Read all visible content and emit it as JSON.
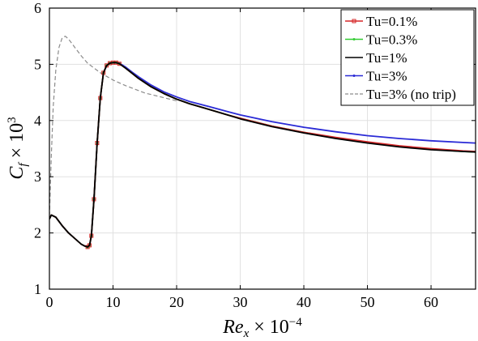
{
  "chart_data": {
    "type": "line",
    "xlabel": "Re_x × 10^-4",
    "ylabel": "C_f × 10^3",
    "xlim": [
      0,
      67
    ],
    "ylim": [
      1,
      6
    ],
    "xticks": [
      0,
      10,
      20,
      30,
      40,
      50,
      60
    ],
    "yticks": [
      1,
      2,
      3,
      4,
      5,
      6
    ],
    "grid": true,
    "legend_position": "top-right",
    "series": [
      {
        "name": "Tu=0.1%",
        "color": "#d62728",
        "style": "solid-square-markers",
        "x": [
          0,
          0.3,
          1,
          2,
          3,
          4,
          5,
          5.5,
          6,
          6.3,
          6.6,
          7,
          7.5,
          8,
          8.5,
          9,
          9.5,
          10,
          10.5,
          11,
          12,
          13,
          14,
          16,
          18,
          20,
          22,
          25,
          28,
          30,
          35,
          40,
          45,
          50,
          55,
          60,
          65,
          67
        ],
        "y": [
          2.25,
          2.32,
          2.28,
          2.13,
          2.0,
          1.9,
          1.8,
          1.77,
          1.75,
          1.78,
          1.95,
          2.6,
          3.6,
          4.4,
          4.85,
          4.98,
          5.02,
          5.03,
          5.03,
          5.01,
          4.93,
          4.84,
          4.75,
          4.6,
          4.48,
          4.38,
          4.3,
          4.2,
          4.1,
          4.04,
          3.9,
          3.79,
          3.7,
          3.62,
          3.55,
          3.5,
          3.46,
          3.45
        ]
      },
      {
        "name": "Tu=0.3%",
        "color": "#33cc33",
        "style": "solid-dot-markers",
        "x": [
          0,
          0.3,
          1,
          2,
          3,
          4,
          5,
          5.5,
          6,
          6.3,
          6.6,
          7,
          7.5,
          8,
          8.5,
          9,
          9.5,
          10,
          10.5,
          11,
          12,
          13,
          14,
          16,
          18,
          20,
          22,
          25,
          28,
          30,
          35,
          40,
          45,
          50,
          55,
          60,
          65,
          67
        ],
        "y": [
          2.25,
          2.32,
          2.28,
          2.13,
          2.0,
          1.9,
          1.8,
          1.77,
          1.75,
          1.78,
          1.95,
          2.6,
          3.6,
          4.4,
          4.85,
          4.98,
          5.02,
          5.03,
          5.03,
          5.01,
          4.93,
          4.84,
          4.75,
          4.6,
          4.48,
          4.38,
          4.3,
          4.2,
          4.1,
          4.04,
          3.9,
          3.79,
          3.69,
          3.61,
          3.54,
          3.49,
          3.45,
          3.44
        ]
      },
      {
        "name": "Tu=1%",
        "color": "#000000",
        "style": "solid",
        "x": [
          0,
          0.3,
          1,
          2,
          3,
          4,
          5,
          5.5,
          6,
          6.3,
          6.6,
          7,
          7.5,
          8,
          8.5,
          9,
          9.5,
          10,
          10.5,
          11,
          12,
          13,
          14,
          16,
          18,
          20,
          22,
          25,
          28,
          30,
          35,
          40,
          45,
          50,
          55,
          60,
          65,
          67
        ],
        "y": [
          2.25,
          2.32,
          2.28,
          2.13,
          2.0,
          1.9,
          1.8,
          1.77,
          1.75,
          1.78,
          1.95,
          2.6,
          3.6,
          4.4,
          4.85,
          4.98,
          5.02,
          5.03,
          5.03,
          5.01,
          4.93,
          4.84,
          4.75,
          4.6,
          4.48,
          4.38,
          4.3,
          4.2,
          4.1,
          4.03,
          3.89,
          3.78,
          3.68,
          3.6,
          3.53,
          3.48,
          3.45,
          3.44
        ]
      },
      {
        "name": "Tu=3%",
        "color": "#2a2ad6",
        "style": "solid-dot-markers",
        "x": [
          0,
          0.3,
          1,
          2,
          3,
          4,
          5,
          5.5,
          6,
          6.3,
          6.6,
          7,
          7.5,
          8,
          8.5,
          9,
          9.5,
          10,
          10.5,
          11,
          12,
          13,
          14,
          16,
          18,
          20,
          22,
          25,
          28,
          30,
          35,
          40,
          45,
          50,
          55,
          60,
          65,
          67
        ],
        "y": [
          2.25,
          2.32,
          2.28,
          2.13,
          2.0,
          1.9,
          1.8,
          1.77,
          1.75,
          1.78,
          1.95,
          2.6,
          3.6,
          4.4,
          4.85,
          4.98,
          5.02,
          5.03,
          5.03,
          5.02,
          4.95,
          4.86,
          4.78,
          4.63,
          4.51,
          4.42,
          4.34,
          4.25,
          4.16,
          4.1,
          3.98,
          3.88,
          3.8,
          3.73,
          3.68,
          3.64,
          3.61,
          3.6
        ]
      },
      {
        "name": "Tu=3% (no trip)",
        "color": "#8c8c8c",
        "style": "dashed",
        "x": [
          0,
          0.3,
          0.6,
          1,
          1.5,
          2,
          2.5,
          3,
          4,
          5,
          6,
          8,
          10,
          12,
          15,
          20
        ],
        "y": [
          2.3,
          3.4,
          4.25,
          4.9,
          5.3,
          5.47,
          5.5,
          5.45,
          5.3,
          5.15,
          5.02,
          4.85,
          4.72,
          4.62,
          4.49,
          4.35
        ]
      }
    ]
  }
}
